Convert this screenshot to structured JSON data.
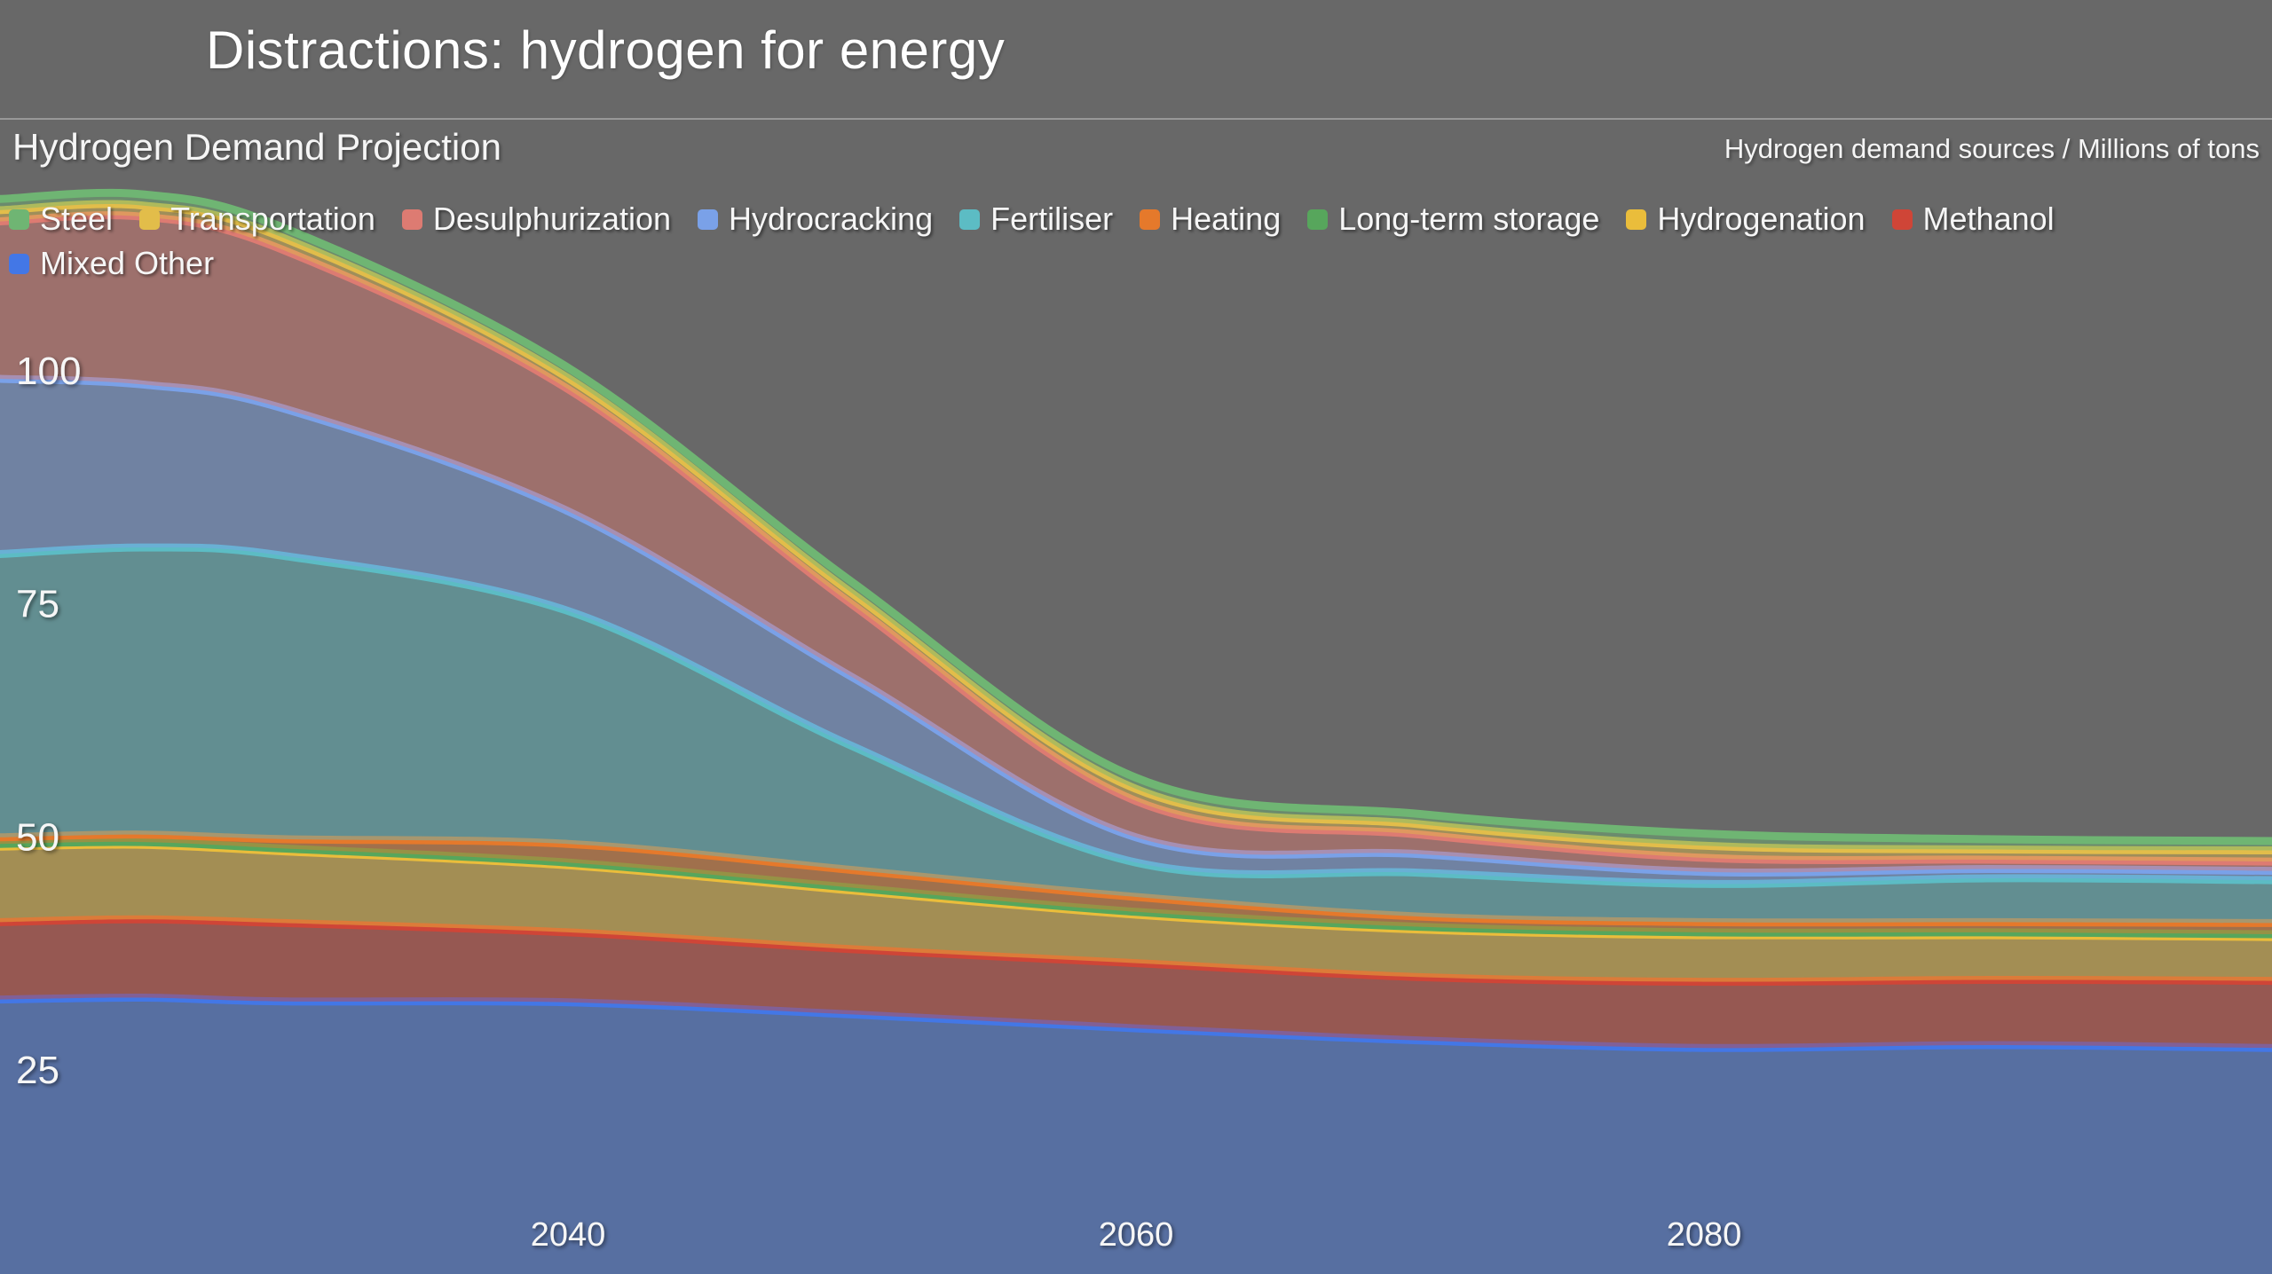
{
  "header": {
    "title": "Distractions: hydrogen for energy"
  },
  "chart_header": {
    "title": "Hydrogen Demand Projection",
    "units_label": "Hydrogen demand sources / Millions of tons"
  },
  "colors": {
    "background": "#686868",
    "divider": "rgba(255,255,255,0.32)",
    "tick_text": "#f6f6f6",
    "fill_opacity": 0.45
  },
  "chart_data": {
    "type": "area",
    "stacked": true,
    "title": "Hydrogen Demand Projection",
    "ylabel": "Hydrogen demand sources / Millions of tons",
    "xlabel": "",
    "grid": false,
    "legend_position": "top",
    "xlim": [
      2020,
      2100
    ],
    "ylim": [
      0,
      127
    ],
    "xticks": [
      "2040",
      "2060",
      "2080"
    ],
    "xtick_values": [
      2040,
      2060,
      2080
    ],
    "yticks": [
      "25",
      "50",
      "75",
      "100"
    ],
    "ytick_values": [
      25,
      50,
      75,
      100
    ],
    "x": [
      2020,
      2025,
      2030,
      2040,
      2050,
      2060,
      2070,
      2080,
      2090,
      2100
    ],
    "stack_order_bottom_to_top": [
      "Mixed Other",
      "Methanol",
      "Hydrogenation",
      "Long-term storage",
      "Heating",
      "Fertiliser",
      "Hydrocracking",
      "Desulphurization",
      "Transportation",
      "Steel"
    ],
    "series": [
      {
        "name": "Steel",
        "color": "#6fb573",
        "values": [
          1.2,
          1.2,
          1.1,
          1.1,
          1.2,
          1.2,
          1.1,
          1.3,
          1.1,
          1.0
        ]
      },
      {
        "name": "Transportation",
        "color": "#e2bd4a",
        "values": [
          1.2,
          1.2,
          1.3,
          1.2,
          1.2,
          1.3,
          1.1,
          1.3,
          1.1,
          1.2
        ]
      },
      {
        "name": "Desulphurization",
        "color": "#dd7b72",
        "values": [
          16.9,
          18.0,
          17.0,
          13.1,
          7.8,
          3.9,
          2.1,
          1.5,
          1.0,
          1.0
        ]
      },
      {
        "name": "Hydrocracking",
        "color": "#7aa1e8",
        "values": [
          18.8,
          17.5,
          15.8,
          10.7,
          7.4,
          2.7,
          2.0,
          1.3,
          1.0,
          1.0
        ]
      },
      {
        "name": "Fertiliser",
        "color": "#5cbcc4",
        "values": [
          30.4,
          30.8,
          30.4,
          25.0,
          13.3,
          3.7,
          4.7,
          4.1,
          4.7,
          4.6
        ]
      },
      {
        "name": "Heating",
        "color": "#e5792b",
        "values": [
          0.7,
          0.8,
          1.0,
          2.0,
          1.9,
          1.6,
          1.1,
          1.1,
          1.1,
          1.2
        ]
      },
      {
        "name": "Long-term storage",
        "color": "#57a65c",
        "values": [
          0.3,
          0.3,
          0.3,
          0.3,
          0.3,
          0.3,
          0.3,
          0.3,
          0.3,
          0.3
        ]
      },
      {
        "name": "Hydrogenation",
        "color": "#eabd3b",
        "values": [
          8.1,
          8.0,
          7.7,
          7.2,
          6.3,
          5.2,
          5.1,
          5.0,
          4.8,
          4.7
        ]
      },
      {
        "name": "Methanol",
        "color": "#cf4537",
        "values": [
          8.3,
          8.4,
          8.4,
          7.5,
          7.0,
          7.0,
          6.8,
          7.1,
          7.0,
          7.2
        ]
      },
      {
        "name": "Mixed Other",
        "color": "#4377e6",
        "values": [
          32.6,
          32.8,
          32.4,
          32.3,
          31.0,
          29.5,
          28.2,
          27.4,
          27.7,
          27.4
        ]
      }
    ]
  }
}
